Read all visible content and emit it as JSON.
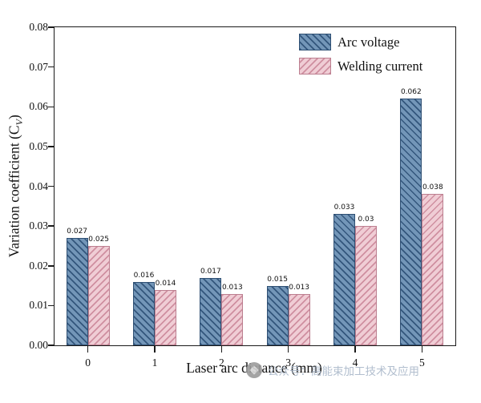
{
  "chart_data": {
    "type": "bar",
    "categories": [
      "0",
      "1",
      "2",
      "3",
      "4",
      "5"
    ],
    "series": [
      {
        "name": "Arc voltage",
        "values": [
          0.027,
          0.016,
          0.017,
          0.015,
          0.033,
          0.062
        ],
        "value_labels": [
          "0.027",
          "0.016",
          "0.017",
          "0.015",
          "0.033",
          "0.062"
        ],
        "fill": "#7396b8",
        "stripe": "#33567c",
        "border": "#2e4f73",
        "hatch_angle": "45deg"
      },
      {
        "name": "Welding current",
        "values": [
          0.025,
          0.014,
          0.013,
          0.013,
          0.03,
          0.038
        ],
        "value_labels": [
          "0.025",
          "0.014",
          "0.013",
          "0.013",
          "0.03",
          "0.038"
        ],
        "fill": "#f0cdd5",
        "stripe": "#cf8fa0",
        "border": "#bc7f90",
        "hatch_angle": "-45deg"
      }
    ],
    "title": "",
    "xlabel": "Laser arc distance (mm)",
    "ylabel": "Variation coefficient (Cv)",
    "ylabel_prefix": "Variation coefficient (C",
    "ylabel_sub": "V",
    "ylabel_suffix": ")",
    "ylim": [
      0,
      0.08
    ],
    "ytick_step": 0.01,
    "yticks": [
      "0.00",
      "0.01",
      "0.02",
      "0.03",
      "0.04",
      "0.05",
      "0.06",
      "0.07",
      "0.08"
    ],
    "legend_position": "top-right",
    "grid": false
  },
  "watermark": {
    "text": "公众号：高能束加工技术及应用"
  }
}
